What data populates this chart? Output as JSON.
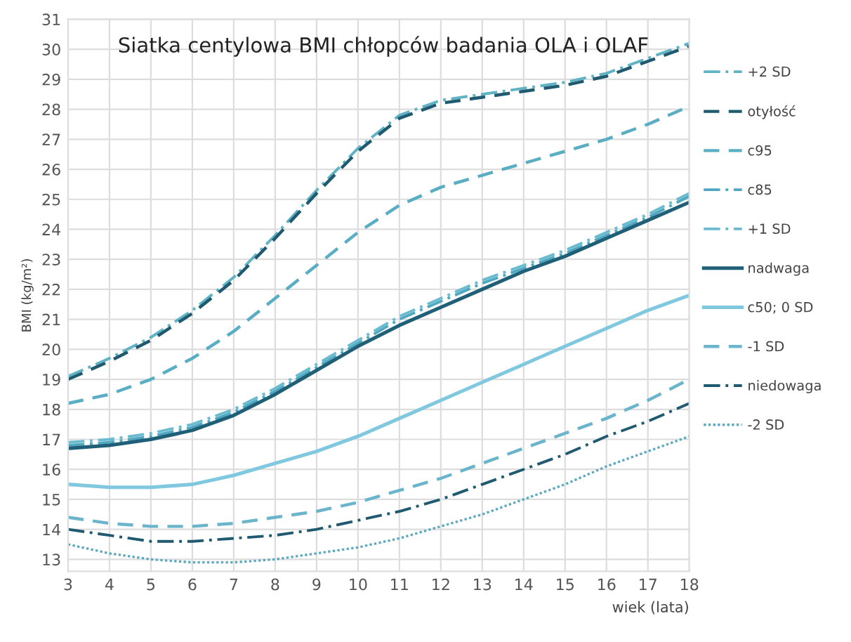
{
  "chart_data": {
    "type": "line",
    "title": "Siatka centylowa BMI chłopców badania OLA i OLAF",
    "xlabel": "wiek (lata)",
    "ylabel": "BMI (kg/m²)",
    "x": [
      3,
      4,
      5,
      6,
      7,
      8,
      9,
      10,
      11,
      12,
      13,
      14,
      15,
      16,
      17,
      18
    ],
    "series": [
      {
        "name": "+2 SD",
        "color": "#5fb3c4",
        "line_style": "dashdot",
        "values": [
          19.1,
          19.7,
          20.4,
          21.3,
          22.4,
          23.8,
          25.3,
          26.7,
          27.8,
          28.3,
          28.5,
          28.7,
          28.9,
          29.2,
          29.7,
          30.2
        ]
      },
      {
        "name": "otyłość",
        "color": "#1f5a70",
        "line_style": "dashed",
        "values": [
          19.0,
          19.6,
          20.3,
          21.2,
          22.3,
          23.7,
          25.2,
          26.6,
          27.7,
          28.2,
          28.4,
          28.6,
          28.8,
          29.1,
          29.6,
          30.1
        ]
      },
      {
        "name": "c95",
        "color": "#5aaec4",
        "line_style": "dashed",
        "values": [
          18.2,
          18.5,
          19.0,
          19.7,
          20.6,
          21.7,
          22.8,
          23.9,
          24.8,
          25.4,
          25.8,
          26.2,
          26.6,
          27.0,
          27.5,
          28.1
        ]
      },
      {
        "name": "c85",
        "color": "#4fa8bf",
        "line_style": "dashdot",
        "values": [
          16.8,
          16.9,
          17.1,
          17.4,
          17.9,
          18.6,
          19.4,
          20.2,
          21.0,
          21.6,
          22.2,
          22.7,
          23.2,
          23.8,
          24.4,
          25.1
        ]
      },
      {
        "name": "+1 SD",
        "color": "#6bbbd0",
        "line_style": "dashdot",
        "values": [
          16.9,
          17.0,
          17.2,
          17.5,
          18.0,
          18.7,
          19.5,
          20.3,
          21.1,
          21.7,
          22.3,
          22.8,
          23.3,
          23.9,
          24.5,
          25.2
        ]
      },
      {
        "name": "nadwaga",
        "color": "#1f5f78",
        "line_style": "solid",
        "values": [
          16.7,
          16.8,
          17.0,
          17.3,
          17.8,
          18.5,
          19.3,
          20.1,
          20.8,
          21.4,
          22.0,
          22.6,
          23.1,
          23.7,
          24.3,
          24.9
        ]
      },
      {
        "name": "c50; 0 SD",
        "color": "#7fc8e0",
        "line_style": "solid",
        "values": [
          15.5,
          15.4,
          15.4,
          15.5,
          15.8,
          16.2,
          16.6,
          17.1,
          17.7,
          18.3,
          18.9,
          19.5,
          20.1,
          20.7,
          21.3,
          21.8
        ]
      },
      {
        "name": "-1 SD",
        "color": "#6bb5cc",
        "line_style": "dashed",
        "values": [
          14.4,
          14.2,
          14.1,
          14.1,
          14.2,
          14.4,
          14.6,
          14.9,
          15.3,
          15.7,
          16.2,
          16.7,
          17.2,
          17.7,
          18.3,
          19.0
        ]
      },
      {
        "name": "niedowaga",
        "color": "#1f5a70",
        "line_style": "dashdot",
        "values": [
          14.0,
          13.8,
          13.6,
          13.6,
          13.7,
          13.8,
          14.0,
          14.3,
          14.6,
          15.0,
          15.5,
          16.0,
          16.5,
          17.1,
          17.6,
          18.2
        ]
      },
      {
        "name": "-2 SD",
        "color": "#5aa9bf",
        "line_style": "dotted",
        "values": [
          13.5,
          13.2,
          13.0,
          12.9,
          12.9,
          13.0,
          13.2,
          13.4,
          13.7,
          14.1,
          14.5,
          15.0,
          15.5,
          16.1,
          16.6,
          17.1
        ]
      }
    ],
    "xlim": [
      3,
      18
    ],
    "ylim": [
      12.6,
      31
    ],
    "xticks": [
      3,
      4,
      5,
      6,
      7,
      8,
      9,
      10,
      11,
      12,
      13,
      14,
      15,
      16,
      17,
      18
    ],
    "yticks": [
      13,
      14,
      15,
      16,
      17,
      18,
      19,
      20,
      21,
      22,
      23,
      24,
      25,
      26,
      27,
      28,
      29,
      30,
      31
    ],
    "grid": true,
    "legend": "right",
    "marker": "none"
  }
}
